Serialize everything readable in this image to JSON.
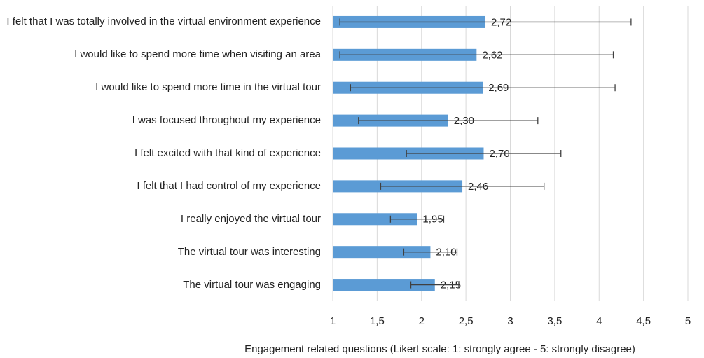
{
  "chart_data": {
    "type": "bar",
    "orientation": "horizontal",
    "xlabel": "Engagement related questions (Likert scale: 1: strongly agree - 5: strongly disagree)",
    "categories": [
      "I felt that I was totally involved in the virtual environment experience",
      "I would like to spend more time when visiting an area",
      "I would like to spend more time in the virtual tour",
      "I was focused throughout my experience",
      "I felt excited with that kind of experience",
      "I felt that I had control of my experience",
      "I really enjoyed the virtual tour",
      "The virtual tour was interesting",
      "The virtual tour was engaging"
    ],
    "values": [
      2.72,
      2.62,
      2.69,
      2.3,
      2.7,
      2.46,
      1.95,
      2.1,
      2.15
    ],
    "value_labels": [
      "2,72",
      "2,62",
      "2,69",
      "2,30",
      "2,70",
      "2,46",
      "1,95",
      "2,10",
      "2,15"
    ],
    "errors": [
      1.64,
      1.54,
      1.49,
      1.01,
      0.87,
      0.92,
      0.3,
      0.3,
      0.27
    ],
    "color": "#5b9bd5",
    "error_color": "#404040",
    "xlim": [
      1,
      5
    ],
    "xticks": [
      1,
      {
        "value": 1.5,
        "label": "1,5"
      },
      2,
      {
        "value": 2.5,
        "label": "2,5"
      },
      3,
      {
        "value": 3.5,
        "label": "3,5"
      },
      4,
      {
        "value": 4.5,
        "label": "4,5"
      },
      5
    ],
    "grid": true
  }
}
